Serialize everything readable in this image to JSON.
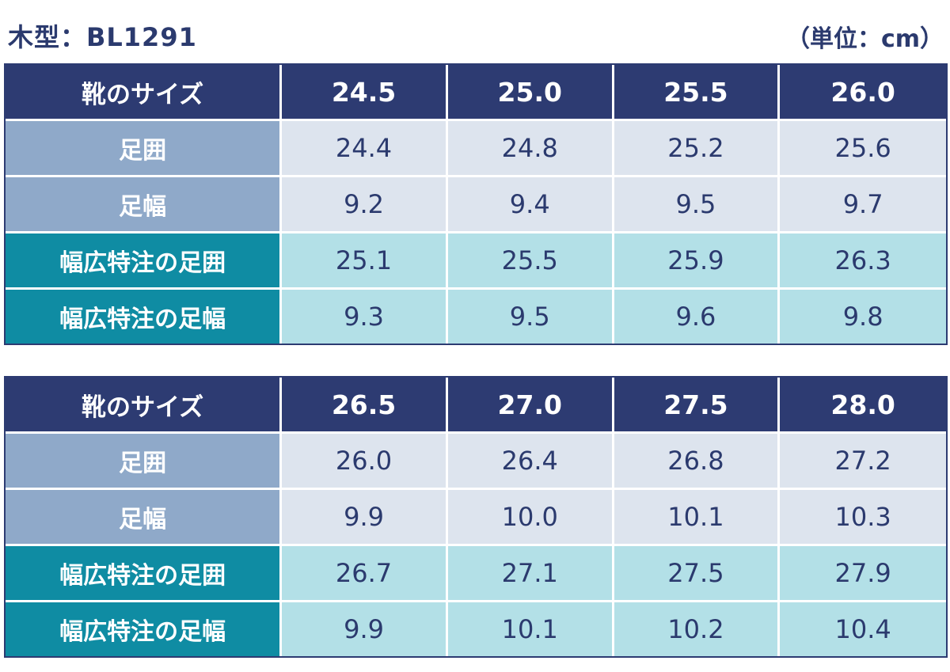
{
  "header": {
    "title": "木型：BL1291",
    "unit": "（単位：cm）"
  },
  "tables": [
    {
      "header": {
        "label": "靴のサイズ",
        "sizes": [
          "24.5",
          "25.0",
          "25.5",
          "26.0"
        ]
      },
      "rows": [
        {
          "label": "足囲",
          "kind": "std",
          "values": [
            "24.4",
            "24.8",
            "25.2",
            "25.6"
          ]
        },
        {
          "label": "足幅",
          "kind": "std",
          "values": [
            "9.2",
            "9.4",
            "9.5",
            "9.7"
          ]
        },
        {
          "label": "幅広特注の足囲",
          "kind": "wide",
          "values": [
            "25.1",
            "25.5",
            "25.9",
            "26.3"
          ]
        },
        {
          "label": "幅広特注の足幅",
          "kind": "wide",
          "values": [
            "9.3",
            "9.5",
            "9.6",
            "9.8"
          ]
        }
      ]
    },
    {
      "header": {
        "label": "靴のサイズ",
        "sizes": [
          "26.5",
          "27.0",
          "27.5",
          "28.0"
        ]
      },
      "rows": [
        {
          "label": "足囲",
          "kind": "std",
          "values": [
            "26.0",
            "26.4",
            "26.8",
            "27.2"
          ]
        },
        {
          "label": "足幅",
          "kind": "std",
          "values": [
            "9.9",
            "10.0",
            "10.1",
            "10.3"
          ]
        },
        {
          "label": "幅広特注の足囲",
          "kind": "wide",
          "values": [
            "26.7",
            "27.1",
            "27.5",
            "27.9"
          ]
        },
        {
          "label": "幅広特注の足幅",
          "kind": "wide",
          "values": [
            "9.9",
            "10.1",
            "10.2",
            "10.4"
          ]
        }
      ]
    }
  ],
  "colors": {
    "header_bg": "#2d3b72",
    "std_label_bg": "#8fa9c9",
    "std_value_bg": "#dde4ee",
    "wide_label_bg": "#0f8ca3",
    "wide_value_bg": "#b3e0e7",
    "text_dark": "#2b3a6e"
  }
}
